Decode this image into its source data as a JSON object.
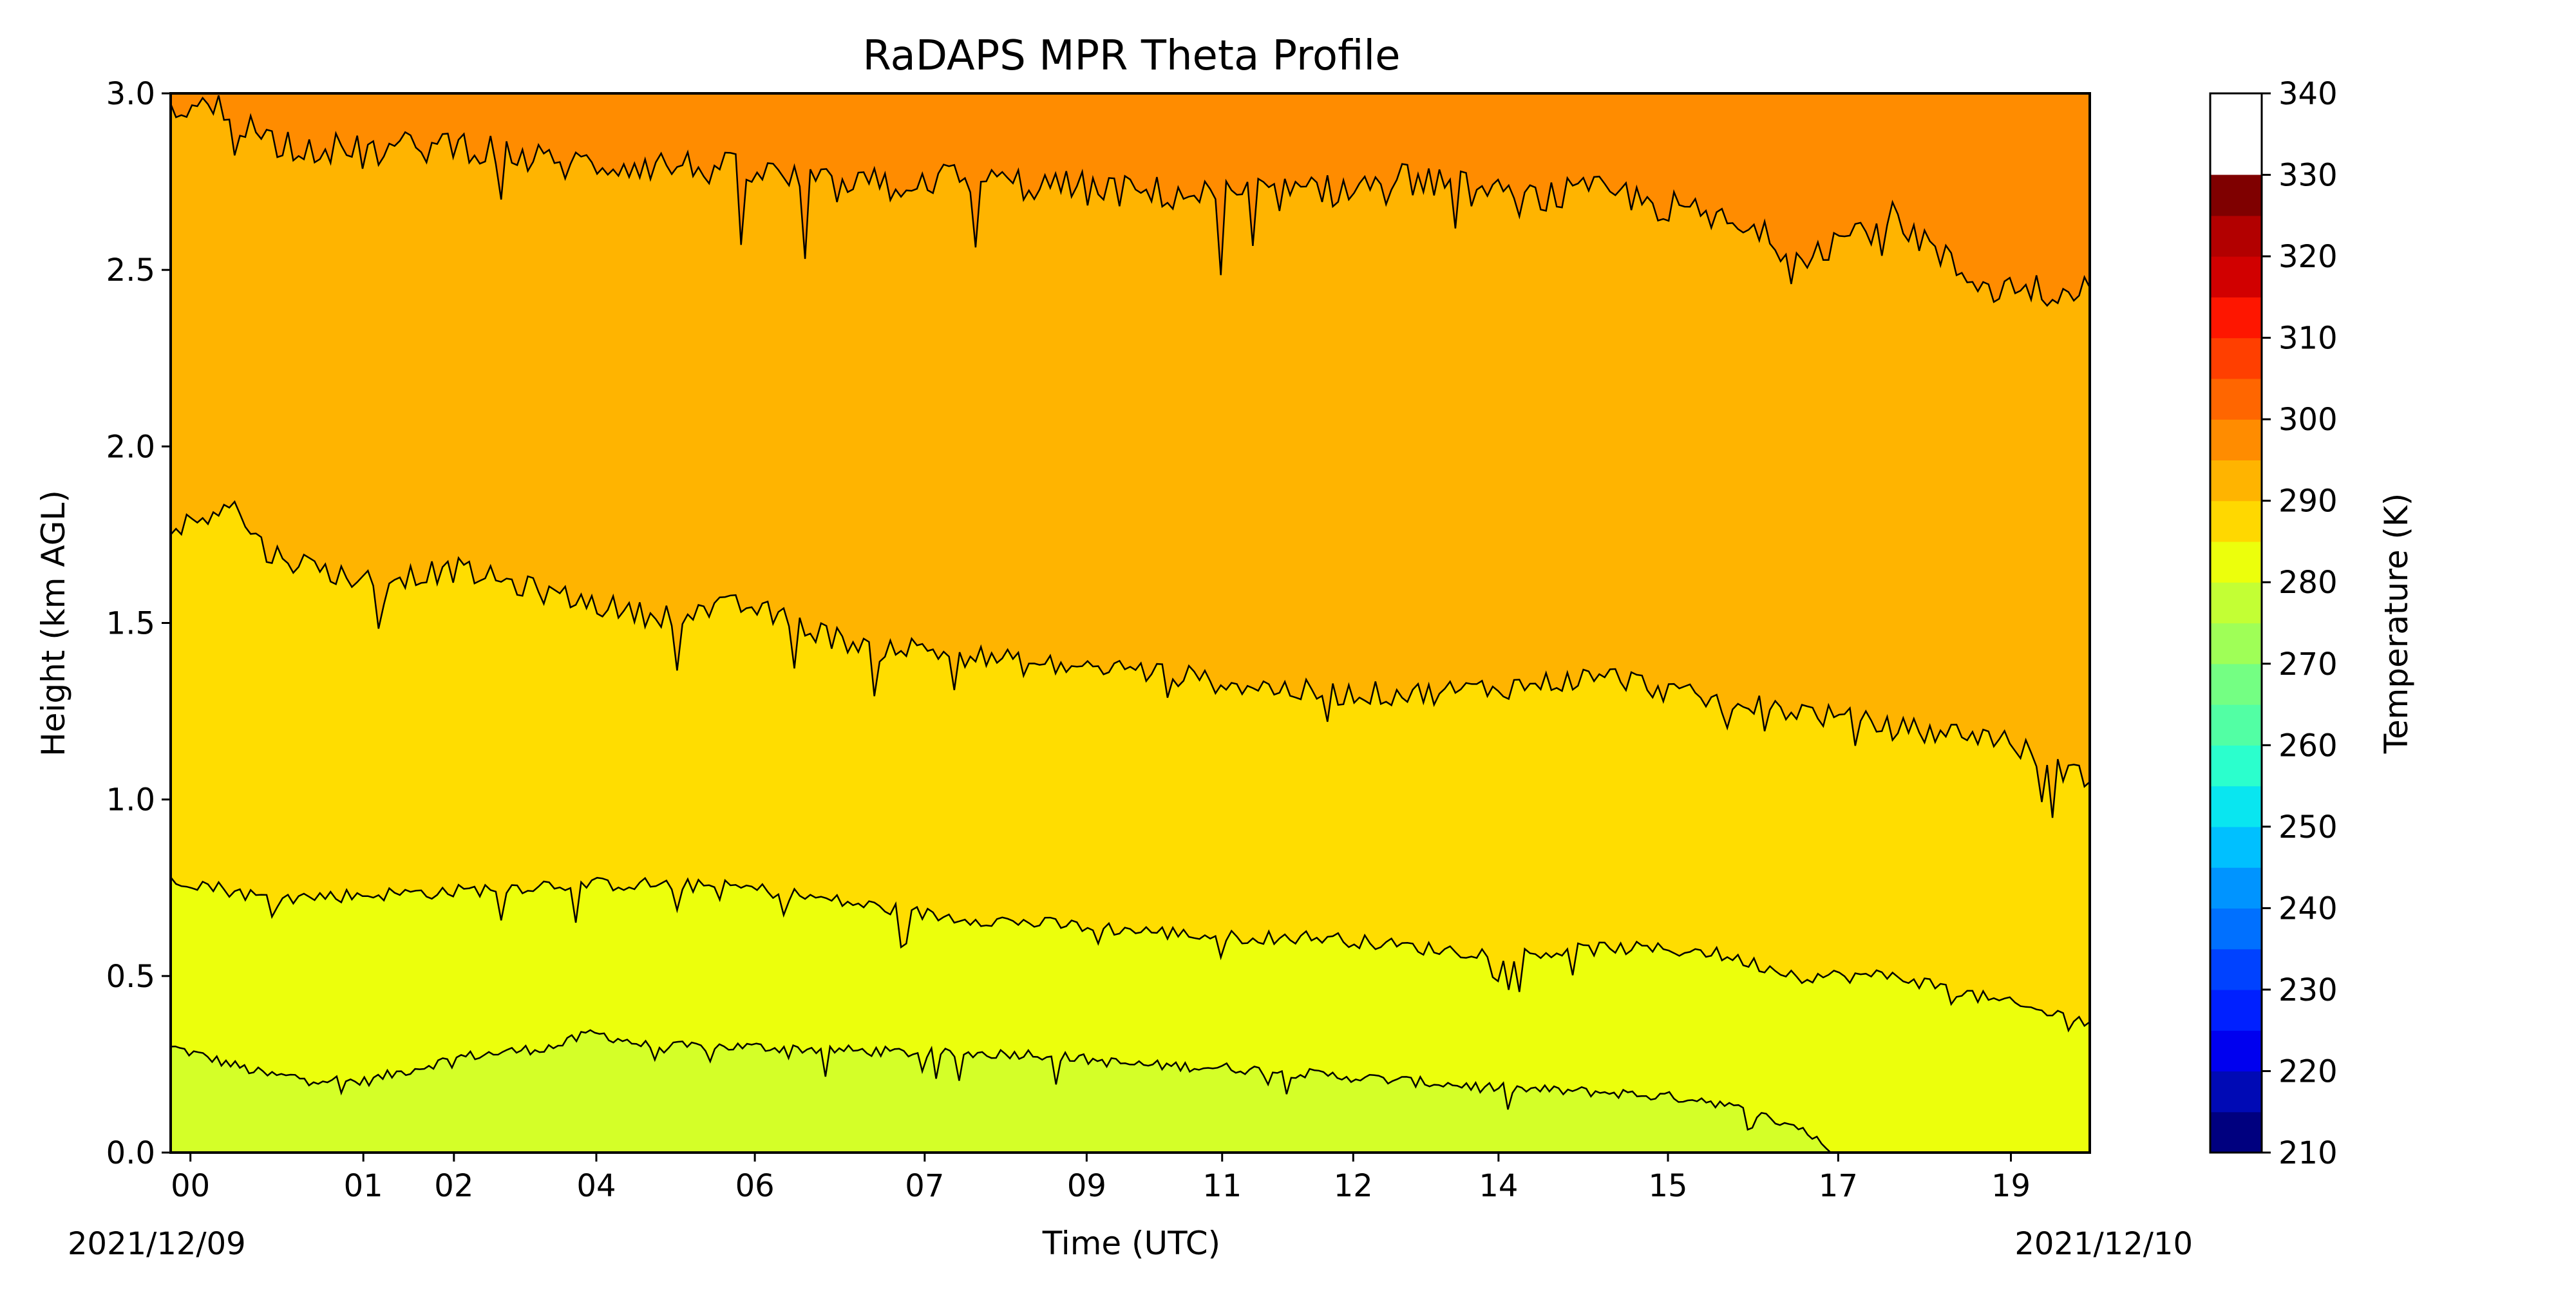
{
  "chart_data": {
    "type": "heatmap",
    "title": "RaDAPS MPR Theta Profile",
    "xlabel": "Time (UTC)",
    "ylabel": "Height (km AGL)",
    "x_tick_labels": [
      "00",
      "01",
      "02",
      "04",
      "06",
      "07",
      "09",
      "11",
      "12",
      "14",
      "15",
      "17",
      "19"
    ],
    "x_tick_fractions": [
      0.0103,
      0.1004,
      0.1476,
      0.2218,
      0.3044,
      0.3929,
      0.4773,
      0.5479,
      0.6162,
      0.6919,
      0.7802,
      0.8689,
      0.9589
    ],
    "x_date_labels": {
      "start": "2021/12/09",
      "end": "2021/12/10"
    },
    "ylim": [
      0.0,
      3.0
    ],
    "y_ticks": [
      0.0,
      0.5,
      1.0,
      1.5,
      2.0,
      2.5,
      3.0
    ],
    "y_tick_labels": [
      "0.0",
      "0.5",
      "1.0",
      "1.5",
      "2.0",
      "2.5",
      "3.0"
    ],
    "colorbar": {
      "label": "Temperature (K)",
      "range": [
        210,
        340
      ],
      "step": 5,
      "tick_values": [
        210,
        220,
        230,
        240,
        250,
        260,
        270,
        280,
        290,
        300,
        310,
        320,
        330,
        340
      ],
      "tick_labels": [
        "210",
        "220",
        "230",
        "240",
        "250",
        "260",
        "270",
        "280",
        "290",
        "300",
        "310",
        "320",
        "330",
        "340"
      ],
      "level_colors": [
        "#00007f",
        "#000ab5",
        "#0000ef",
        "#0020ff",
        "#0042ff",
        "#0070ff",
        "#0094ff",
        "#00c0ff",
        "#09e6f0",
        "#2bffcd",
        "#52ffa4",
        "#74ff83",
        "#9fff57",
        "#c3ff34",
        "#ecff0c",
        "#ffd800",
        "#ffb400",
        "#ff8c00",
        "#ff6600",
        "#ff3f00",
        "#fe1600",
        "#d10000",
        "#b20000",
        "#7f0000"
      ]
    },
    "regions": [
      {
        "level": "285-290 K",
        "color": "#d4ff28"
      },
      {
        "level": "290-295 K",
        "color": "#ecff0c"
      },
      {
        "level": "295-300 K",
        "color": "#ffdd00"
      },
      {
        "level": "300-305 K",
        "color": "#ffb400"
      },
      {
        "level": "305-310 K",
        "color": "#ff8c00"
      }
    ],
    "contours": [
      {
        "level": "290 K",
        "x": [
          0.0,
          0.05,
          0.1,
          0.15,
          0.2,
          0.22,
          0.25,
          0.3,
          0.35,
          0.4,
          0.45,
          0.5,
          0.55,
          0.6,
          0.65,
          0.7,
          0.75,
          0.8,
          0.85,
          0.865
        ],
        "y": [
          0.3,
          0.22,
          0.2,
          0.27,
          0.3,
          0.34,
          0.3,
          0.3,
          0.29,
          0.28,
          0.28,
          0.25,
          0.24,
          0.22,
          0.2,
          0.18,
          0.17,
          0.15,
          0.07,
          0.0
        ]
      },
      {
        "level": "295 K",
        "x": [
          0.0,
          0.05,
          0.1,
          0.15,
          0.2,
          0.25,
          0.3,
          0.35,
          0.4,
          0.45,
          0.5,
          0.55,
          0.6,
          0.65,
          0.7,
          0.75,
          0.8,
          0.85,
          0.9,
          0.95,
          1.0
        ],
        "y": [
          0.78,
          0.72,
          0.73,
          0.74,
          0.76,
          0.76,
          0.75,
          0.71,
          0.67,
          0.65,
          0.63,
          0.61,
          0.61,
          0.58,
          0.56,
          0.58,
          0.57,
          0.5,
          0.5,
          0.43,
          0.37
        ]
      },
      {
        "level": "300 K",
        "x": [
          0.0,
          0.03,
          0.05,
          0.08,
          0.1,
          0.15,
          0.2,
          0.25,
          0.3,
          0.35,
          0.4,
          0.45,
          0.5,
          0.55,
          0.6,
          0.65,
          0.7,
          0.75,
          0.8,
          0.85,
          0.9,
          0.95,
          1.0
        ],
        "y": [
          1.75,
          1.85,
          1.7,
          1.65,
          1.62,
          1.65,
          1.58,
          1.52,
          1.55,
          1.45,
          1.42,
          1.38,
          1.37,
          1.33,
          1.3,
          1.3,
          1.32,
          1.35,
          1.28,
          1.25,
          1.2,
          1.18,
          1.05
        ]
      },
      {
        "level": "305 K",
        "x": [
          0.0,
          0.03,
          0.05,
          0.1,
          0.15,
          0.2,
          0.25,
          0.3,
          0.35,
          0.4,
          0.45,
          0.5,
          0.55,
          0.6,
          0.65,
          0.7,
          0.75,
          0.8,
          0.85,
          0.9,
          0.93,
          0.95,
          1.0
        ],
        "y": [
          2.97,
          2.95,
          2.87,
          2.83,
          2.86,
          2.8,
          2.8,
          2.78,
          2.73,
          2.76,
          2.74,
          2.72,
          2.71,
          2.72,
          2.76,
          2.7,
          2.72,
          2.65,
          2.55,
          2.65,
          2.5,
          2.45,
          2.45
        ]
      }
    ]
  }
}
